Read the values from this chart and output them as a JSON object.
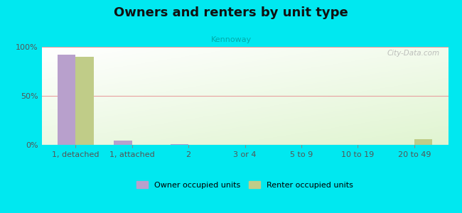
{
  "title": "Owners and renters by unit type",
  "subtitle": "Kennoway",
  "categories": [
    "1, detached",
    "1, attached",
    "2",
    "3 or 4",
    "5 to 9",
    "10 to 19",
    "20 to 49"
  ],
  "owner_values": [
    92,
    4,
    0.7,
    0,
    0,
    0,
    0
  ],
  "renter_values": [
    90,
    0,
    0,
    0,
    0,
    0,
    6
  ],
  "owner_color": "#b8a0cc",
  "renter_color": "#c0cc88",
  "background_outer": "#00e8f0",
  "ylim": [
    0,
    100
  ],
  "yticks": [
    0,
    50,
    100
  ],
  "ytick_labels": [
    "0%",
    "50%",
    "100%"
  ],
  "bar_width": 0.32,
  "legend_owner": "Owner occupied units",
  "legend_renter": "Renter occupied units",
  "watermark": "City-Data.com",
  "grid_color": "#e8a0a0",
  "title_fontsize": 13,
  "subtitle_fontsize": 8,
  "tick_fontsize": 8
}
